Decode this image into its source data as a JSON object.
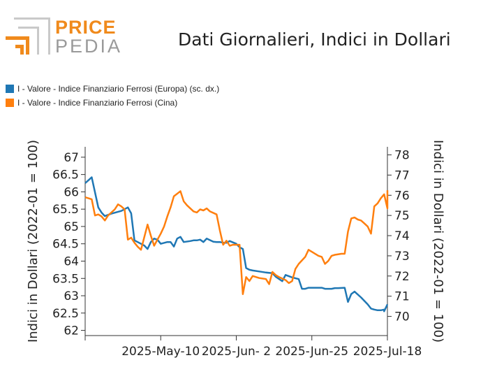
{
  "header": {
    "logo_text_1": "PRICE",
    "logo_text_2": "PEDIA",
    "title": "Dati Giornalieri, Indici in Dollari"
  },
  "colors": {
    "europe": "#1f77b4",
    "china": "#ff7f0e",
    "logo_orange": "#f08a1c",
    "logo_grey": "#9a9a9a"
  },
  "chart_data": {
    "type": "line",
    "title": "Dati Giornalieri, Indici in Dollari",
    "legend_position": "top-left",
    "grid": false,
    "xlabel": "",
    "x_ticks": [
      "2025-May-10",
      "2025-Jun- 2",
      "2025-Jun-25",
      "2025-Jul-18"
    ],
    "x_range": [
      "2025-Apr-17",
      "2025-Jul-18"
    ],
    "y_left": {
      "label": "Indici in Dollari (2022-01 = 100)",
      "ticks": [
        "62",
        "62.5",
        "63",
        "63.5",
        "64",
        "64.5",
        "65",
        "65.5",
        "66",
        "66.5",
        "67"
      ],
      "range": [
        61.85,
        67.3
      ]
    },
    "y_right": {
      "label": "Indici in Dollari (2022-01 = 100)",
      "ticks": [
        "70",
        "71",
        "72",
        "73",
        "74",
        "75",
        "76",
        "77",
        "78"
      ],
      "range": [
        69.05,
        78.4
      ]
    },
    "series": [
      {
        "name": "I - Valore - Indice Finanziario Ferrosi (Europa) (sc. dx.)",
        "axis": "right",
        "color": "#1f77b4",
        "points": [
          [
            "2025-04-17",
            66.25
          ],
          [
            "2025-04-19",
            66.42
          ],
          [
            "2025-04-21",
            65.55
          ],
          [
            "2025-04-22",
            65.4
          ],
          [
            "2025-04-23",
            65.3
          ],
          [
            "2025-04-25",
            65.37
          ],
          [
            "2025-04-28",
            65.45
          ],
          [
            "2025-04-29",
            65.5
          ],
          [
            "2025-04-30",
            65.55
          ],
          [
            "2025-05-01",
            65.38
          ],
          [
            "2025-05-02",
            64.6
          ],
          [
            "2025-05-05",
            64.45
          ],
          [
            "2025-05-06",
            64.35
          ],
          [
            "2025-05-07",
            64.55
          ],
          [
            "2025-05-08",
            64.65
          ],
          [
            "2025-05-09",
            64.62
          ],
          [
            "2025-05-10",
            64.5
          ],
          [
            "2025-05-12",
            64.55
          ],
          [
            "2025-05-13",
            64.55
          ],
          [
            "2025-05-14",
            64.42
          ],
          [
            "2025-05-15",
            64.65
          ],
          [
            "2025-05-16",
            64.7
          ],
          [
            "2025-05-17",
            64.55
          ],
          [
            "2025-05-19",
            64.58
          ],
          [
            "2025-05-20",
            64.6
          ],
          [
            "2025-05-21",
            64.6
          ],
          [
            "2025-05-22",
            64.62
          ],
          [
            "2025-05-23",
            64.55
          ],
          [
            "2025-05-24",
            64.65
          ],
          [
            "2025-05-26",
            64.56
          ],
          [
            "2025-05-27",
            64.55
          ],
          [
            "2025-05-28",
            64.55
          ],
          [
            "2025-05-29",
            64.53
          ],
          [
            "2025-05-30",
            64.53
          ],
          [
            "2025-05-31",
            64.58
          ],
          [
            "2025-06-02",
            64.5
          ],
          [
            "2025-06-03",
            64.4
          ],
          [
            "2025-06-04",
            64.35
          ],
          [
            "2025-06-05",
            63.8
          ],
          [
            "2025-06-06",
            63.75
          ],
          [
            "2025-06-07",
            63.73
          ],
          [
            "2025-06-09",
            63.7
          ],
          [
            "2025-06-11",
            63.67
          ],
          [
            "2025-06-13",
            63.65
          ],
          [
            "2025-06-14",
            63.55
          ],
          [
            "2025-06-16",
            63.42
          ],
          [
            "2025-06-17",
            63.6
          ],
          [
            "2025-06-19",
            63.53
          ],
          [
            "2025-06-21",
            63.48
          ],
          [
            "2025-06-22",
            63.2
          ],
          [
            "2025-06-23",
            63.2
          ],
          [
            "2025-06-24",
            63.23
          ],
          [
            "2025-06-26",
            63.23
          ],
          [
            "2025-06-28",
            63.23
          ],
          [
            "2025-06-29",
            63.2
          ],
          [
            "2025-06-30",
            63.2
          ],
          [
            "2025-07-01",
            63.2
          ],
          [
            "2025-07-02",
            63.22
          ],
          [
            "2025-07-03",
            63.22
          ],
          [
            "2025-07-05",
            63.23
          ],
          [
            "2025-07-06",
            62.82
          ],
          [
            "2025-07-07",
            63.05
          ],
          [
            "2025-07-08",
            63.12
          ],
          [
            "2025-07-10",
            62.95
          ],
          [
            "2025-07-11",
            62.85
          ],
          [
            "2025-07-12",
            62.75
          ],
          [
            "2025-07-13",
            62.63
          ],
          [
            "2025-07-14",
            62.6
          ],
          [
            "2025-07-15",
            62.58
          ],
          [
            "2025-07-16",
            62.58
          ],
          [
            "2025-07-17",
            62.6
          ],
          [
            "2025-07-17",
            62.55
          ],
          [
            "2025-07-18",
            62.75
          ]
        ]
      },
      {
        "name": "I - Valore - Indice Finanziario Ferrosi (Cina)",
        "axis": "left",
        "color": "#ff7f0e",
        "points": [
          [
            "2025-04-17",
            75.9
          ],
          [
            "2025-04-18",
            75.85
          ],
          [
            "2025-04-19",
            75.8
          ],
          [
            "2025-04-20",
            75.0
          ],
          [
            "2025-04-21",
            75.05
          ],
          [
            "2025-04-22",
            74.95
          ],
          [
            "2025-04-23",
            74.75
          ],
          [
            "2025-04-24",
            75.0
          ],
          [
            "2025-04-26",
            75.3
          ],
          [
            "2025-04-27",
            75.55
          ],
          [
            "2025-04-28",
            75.45
          ],
          [
            "2025-04-29",
            75.3
          ],
          [
            "2025-04-30",
            73.8
          ],
          [
            "2025-05-01",
            73.9
          ],
          [
            "2025-05-02",
            73.65
          ],
          [
            "2025-05-03",
            73.45
          ],
          [
            "2025-05-04",
            73.3
          ],
          [
            "2025-05-06",
            74.55
          ],
          [
            "2025-05-07",
            74.0
          ],
          [
            "2025-05-08",
            73.5
          ],
          [
            "2025-05-09",
            73.8
          ],
          [
            "2025-05-10",
            74.1
          ],
          [
            "2025-05-11",
            74.45
          ],
          [
            "2025-05-12",
            74.95
          ],
          [
            "2025-05-13",
            75.4
          ],
          [
            "2025-05-14",
            75.95
          ],
          [
            "2025-05-16",
            76.2
          ],
          [
            "2025-05-17",
            75.7
          ],
          [
            "2025-05-18",
            75.5
          ],
          [
            "2025-05-20",
            75.2
          ],
          [
            "2025-05-21",
            75.15
          ],
          [
            "2025-05-22",
            75.3
          ],
          [
            "2025-05-23",
            75.25
          ],
          [
            "2025-05-24",
            75.35
          ],
          [
            "2025-05-25",
            75.2
          ],
          [
            "2025-05-27",
            75.05
          ],
          [
            "2025-05-28",
            74.25
          ],
          [
            "2025-05-29",
            73.55
          ],
          [
            "2025-05-30",
            73.75
          ],
          [
            "2025-05-31",
            73.5
          ],
          [
            "2025-06-01",
            73.55
          ],
          [
            "2025-06-03",
            73.55
          ],
          [
            "2025-06-04",
            71.1
          ],
          [
            "2025-06-05",
            71.95
          ],
          [
            "2025-06-06",
            71.75
          ],
          [
            "2025-06-07",
            72.0
          ],
          [
            "2025-06-09",
            71.9
          ],
          [
            "2025-06-11",
            71.85
          ],
          [
            "2025-06-12",
            71.6
          ],
          [
            "2025-06-13",
            72.2
          ],
          [
            "2025-06-14",
            72.05
          ],
          [
            "2025-06-15",
            71.95
          ],
          [
            "2025-06-17",
            71.8
          ],
          [
            "2025-06-18",
            71.65
          ],
          [
            "2025-06-19",
            71.75
          ],
          [
            "2025-06-20",
            72.35
          ],
          [
            "2025-06-21",
            72.6
          ],
          [
            "2025-06-23",
            72.95
          ],
          [
            "2025-06-24",
            73.3
          ],
          [
            "2025-06-25",
            73.2
          ],
          [
            "2025-06-27",
            73.0
          ],
          [
            "2025-06-28",
            72.95
          ],
          [
            "2025-06-29",
            72.6
          ],
          [
            "2025-06-30",
            72.75
          ],
          [
            "2025-07-01",
            73.0
          ],
          [
            "2025-07-02",
            73.05
          ],
          [
            "2025-07-04",
            73.1
          ],
          [
            "2025-07-05",
            73.1
          ],
          [
            "2025-07-06",
            74.2
          ],
          [
            "2025-07-07",
            74.85
          ],
          [
            "2025-07-08",
            74.9
          ],
          [
            "2025-07-09",
            74.8
          ],
          [
            "2025-07-10",
            74.75
          ],
          [
            "2025-07-11",
            74.6
          ],
          [
            "2025-07-12",
            74.45
          ],
          [
            "2025-07-13",
            74.1
          ],
          [
            "2025-07-14",
            75.45
          ],
          [
            "2025-07-15",
            75.6
          ],
          [
            "2025-07-16",
            75.85
          ],
          [
            "2025-07-17",
            76.05
          ],
          [
            "2025-07-18",
            75.35
          ],
          [
            "2025-07-18",
            75.8
          ],
          [
            "2025-07-18",
            76.25
          ]
        ]
      }
    ]
  }
}
